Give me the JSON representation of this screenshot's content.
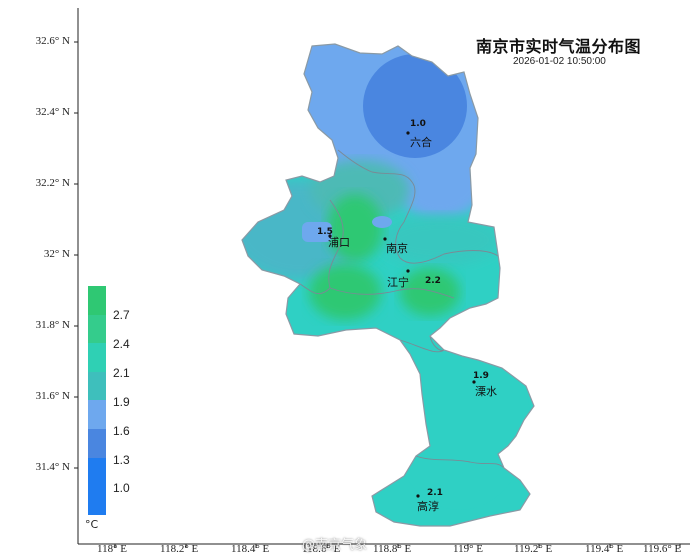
{
  "title": "南京市实时气温分布图",
  "timestamp": "2026-01-02 10:50:00",
  "y_axis_labels": [
    "32.6° N",
    "32.4° N",
    "32.2° N",
    "32° N",
    "31.8° N",
    "31.6° N",
    "31.4° N"
  ],
  "x_axis_labels": [
    "118° E",
    "118.2° E",
    "118.4° E",
    "118.6° E",
    "118.8° E",
    "119° E",
    "119.2° E",
    "119.4° E",
    "119.6° E"
  ],
  "legend": {
    "unit": "°C",
    "labels": [
      "2.7",
      "2.4",
      "2.1",
      "1.9",
      "1.6",
      "1.3",
      "1.0"
    ],
    "colors": [
      "#2fc873",
      "#34cc8c",
      "#2fd0b4",
      "#3ebfbc",
      "#6ea8ee",
      "#4a86e0",
      "#1f7cf0"
    ]
  },
  "stations": [
    {
      "name": "六合",
      "value": "1.0"
    },
    {
      "name": "浦口",
      "value": "1.5"
    },
    {
      "name": "南京",
      "value": ""
    },
    {
      "name": "江宁",
      "value": "2.2"
    },
    {
      "name": "溧水",
      "value": "1.9"
    },
    {
      "name": "高淳",
      "value": "2.1"
    }
  ],
  "watermark": "@南京气象"
}
